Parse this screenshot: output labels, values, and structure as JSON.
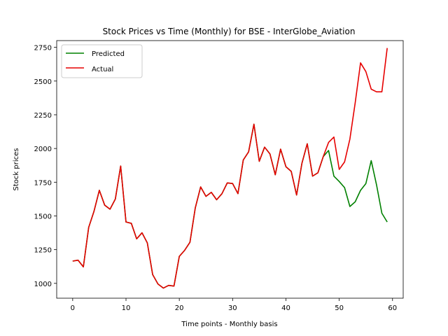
{
  "chart_data": {
    "type": "line",
    "title": "Stock Prices vs Time (Monthly) for BSE - InterGlobe_Aviation",
    "xlabel": "Time points - Monthly basis",
    "ylabel": "Stock prices",
    "xlim": [
      -3,
      62
    ],
    "ylim": [
      890,
      2800
    ],
    "xticks": [
      0,
      10,
      20,
      30,
      40,
      50,
      60
    ],
    "yticks": [
      1000,
      1250,
      1500,
      1750,
      2000,
      2250,
      2500,
      2750
    ],
    "legend_position": "top-left",
    "grid": false,
    "series": [
      {
        "name": "Predicted",
        "color": "#008000",
        "x": [
          0,
          1,
          2,
          3,
          4,
          5,
          6,
          7,
          8,
          9,
          10,
          11,
          12,
          13,
          14,
          15,
          16,
          17,
          18,
          19,
          20,
          21,
          22,
          23,
          24,
          25,
          26,
          27,
          28,
          29,
          30,
          31,
          32,
          33,
          34,
          35,
          36,
          37,
          38,
          39,
          40,
          41,
          42,
          43,
          44,
          45,
          46,
          47,
          48,
          49,
          50,
          51,
          52,
          53,
          54,
          55,
          56,
          57,
          58,
          59
        ],
        "values": [
          1165,
          1172,
          1122,
          1415,
          1535,
          1690,
          1580,
          1550,
          1625,
          1870,
          1455,
          1445,
          1330,
          1375,
          1300,
          1065,
          995,
          965,
          985,
          980,
          1200,
          1245,
          1305,
          1560,
          1715,
          1645,
          1675,
          1620,
          1665,
          1745,
          1740,
          1665,
          1915,
          1975,
          2180,
          1905,
          2010,
          1960,
          1805,
          1995,
          1865,
          1830,
          1655,
          1890,
          2035,
          1795,
          1820,
          1940,
          1985,
          1795,
          1755,
          1710,
          1570,
          1605,
          1690,
          1740,
          1910,
          1730,
          1520,
          1455
        ]
      },
      {
        "name": "Actual",
        "color": "#e60000",
        "x": [
          0,
          1,
          2,
          3,
          4,
          5,
          6,
          7,
          8,
          9,
          10,
          11,
          12,
          13,
          14,
          15,
          16,
          17,
          18,
          19,
          20,
          21,
          22,
          23,
          24,
          25,
          26,
          27,
          28,
          29,
          30,
          31,
          32,
          33,
          34,
          35,
          36,
          37,
          38,
          39,
          40,
          41,
          42,
          43,
          44,
          45,
          46,
          47,
          48,
          49,
          50,
          51,
          52,
          53,
          54,
          55,
          56,
          57,
          58,
          59
        ],
        "values": [
          1165,
          1172,
          1122,
          1415,
          1535,
          1690,
          1580,
          1550,
          1625,
          1870,
          1455,
          1445,
          1330,
          1375,
          1300,
          1065,
          995,
          965,
          985,
          980,
          1200,
          1245,
          1305,
          1560,
          1715,
          1645,
          1675,
          1620,
          1665,
          1745,
          1740,
          1665,
          1915,
          1975,
          2180,
          1905,
          2010,
          1960,
          1805,
          1995,
          1865,
          1830,
          1655,
          1890,
          2035,
          1795,
          1820,
          1940,
          2045,
          2085,
          1845,
          1900,
          2070,
          2340,
          2635,
          2570,
          2440,
          2420,
          2420,
          2745
        ]
      }
    ]
  }
}
